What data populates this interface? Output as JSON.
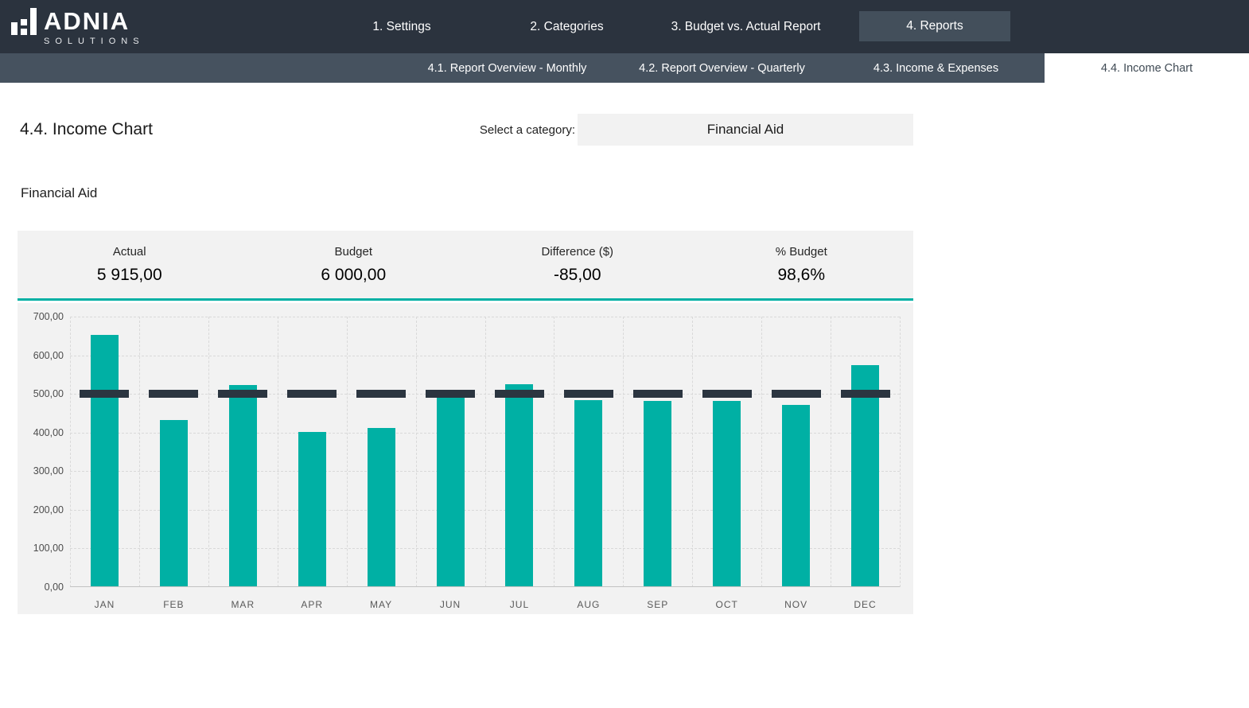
{
  "brand": {
    "name": "ADNIA",
    "tagline": "SOLUTIONS"
  },
  "nav": {
    "items": [
      {
        "label": "1. Settings",
        "active": false
      },
      {
        "label": "2. Categories",
        "active": false
      },
      {
        "label": "3. Budget vs. Actual Report",
        "active": false
      },
      {
        "label": "4. Reports",
        "active": true
      }
    ]
  },
  "subnav": {
    "items": [
      {
        "label": "4.1. Report Overview - Monthly",
        "active": false
      },
      {
        "label": "4.2. Report Overview - Quarterly",
        "active": false
      },
      {
        "label": "4.3. Income & Expenses",
        "active": false
      },
      {
        "label": "4.4. Income Chart",
        "active": true
      }
    ]
  },
  "page": {
    "title": "4.4. Income Chart",
    "category_label": "Select a category:",
    "category_value": "Financial Aid",
    "subtitle": "Financial Aid"
  },
  "summary": {
    "columns": [
      {
        "label": "Actual",
        "value": "5 915,00"
      },
      {
        "label": "Budget",
        "value": "6 000,00"
      },
      {
        "label": "Difference ($)",
        "value": "-85,00"
      },
      {
        "label": "% Budget",
        "value": "98,6%"
      }
    ]
  },
  "chart_data": {
    "type": "bar",
    "title": "Financial Aid",
    "categories": [
      "JAN",
      "FEB",
      "MAR",
      "APR",
      "MAY",
      "JUN",
      "JUL",
      "AUG",
      "SEP",
      "OCT",
      "NOV",
      "DEC"
    ],
    "series": [
      {
        "name": "Actual",
        "type": "bar",
        "color": "#00b0a4",
        "values": [
          650,
          430,
          520,
          400,
          410,
          500,
          523,
          482,
          479,
          480,
          469,
          572
        ]
      },
      {
        "name": "Budget",
        "type": "dash-marker",
        "color": "#2b3540",
        "values": [
          500,
          500,
          500,
          500,
          500,
          500,
          500,
          500,
          500,
          500,
          500,
          500
        ]
      }
    ],
    "xlabel": "",
    "ylabel": "",
    "ylim": [
      0,
      700
    ],
    "ytick_step": 100,
    "ytick_labels": [
      "0,00",
      "100,00",
      "200,00",
      "300,00",
      "400,00",
      "500,00",
      "600,00",
      "700,00"
    ],
    "grid": "dashed",
    "legend": "none"
  },
  "colors": {
    "accent_teal": "#00b0a4",
    "nav_dark": "#2b333e",
    "nav_slate": "#46525f",
    "nav_active_box": "#434f5b",
    "panel_bg": "#f2f2f2",
    "grid_line": "#d9d9d9",
    "budget_marker": "#2b3540"
  }
}
